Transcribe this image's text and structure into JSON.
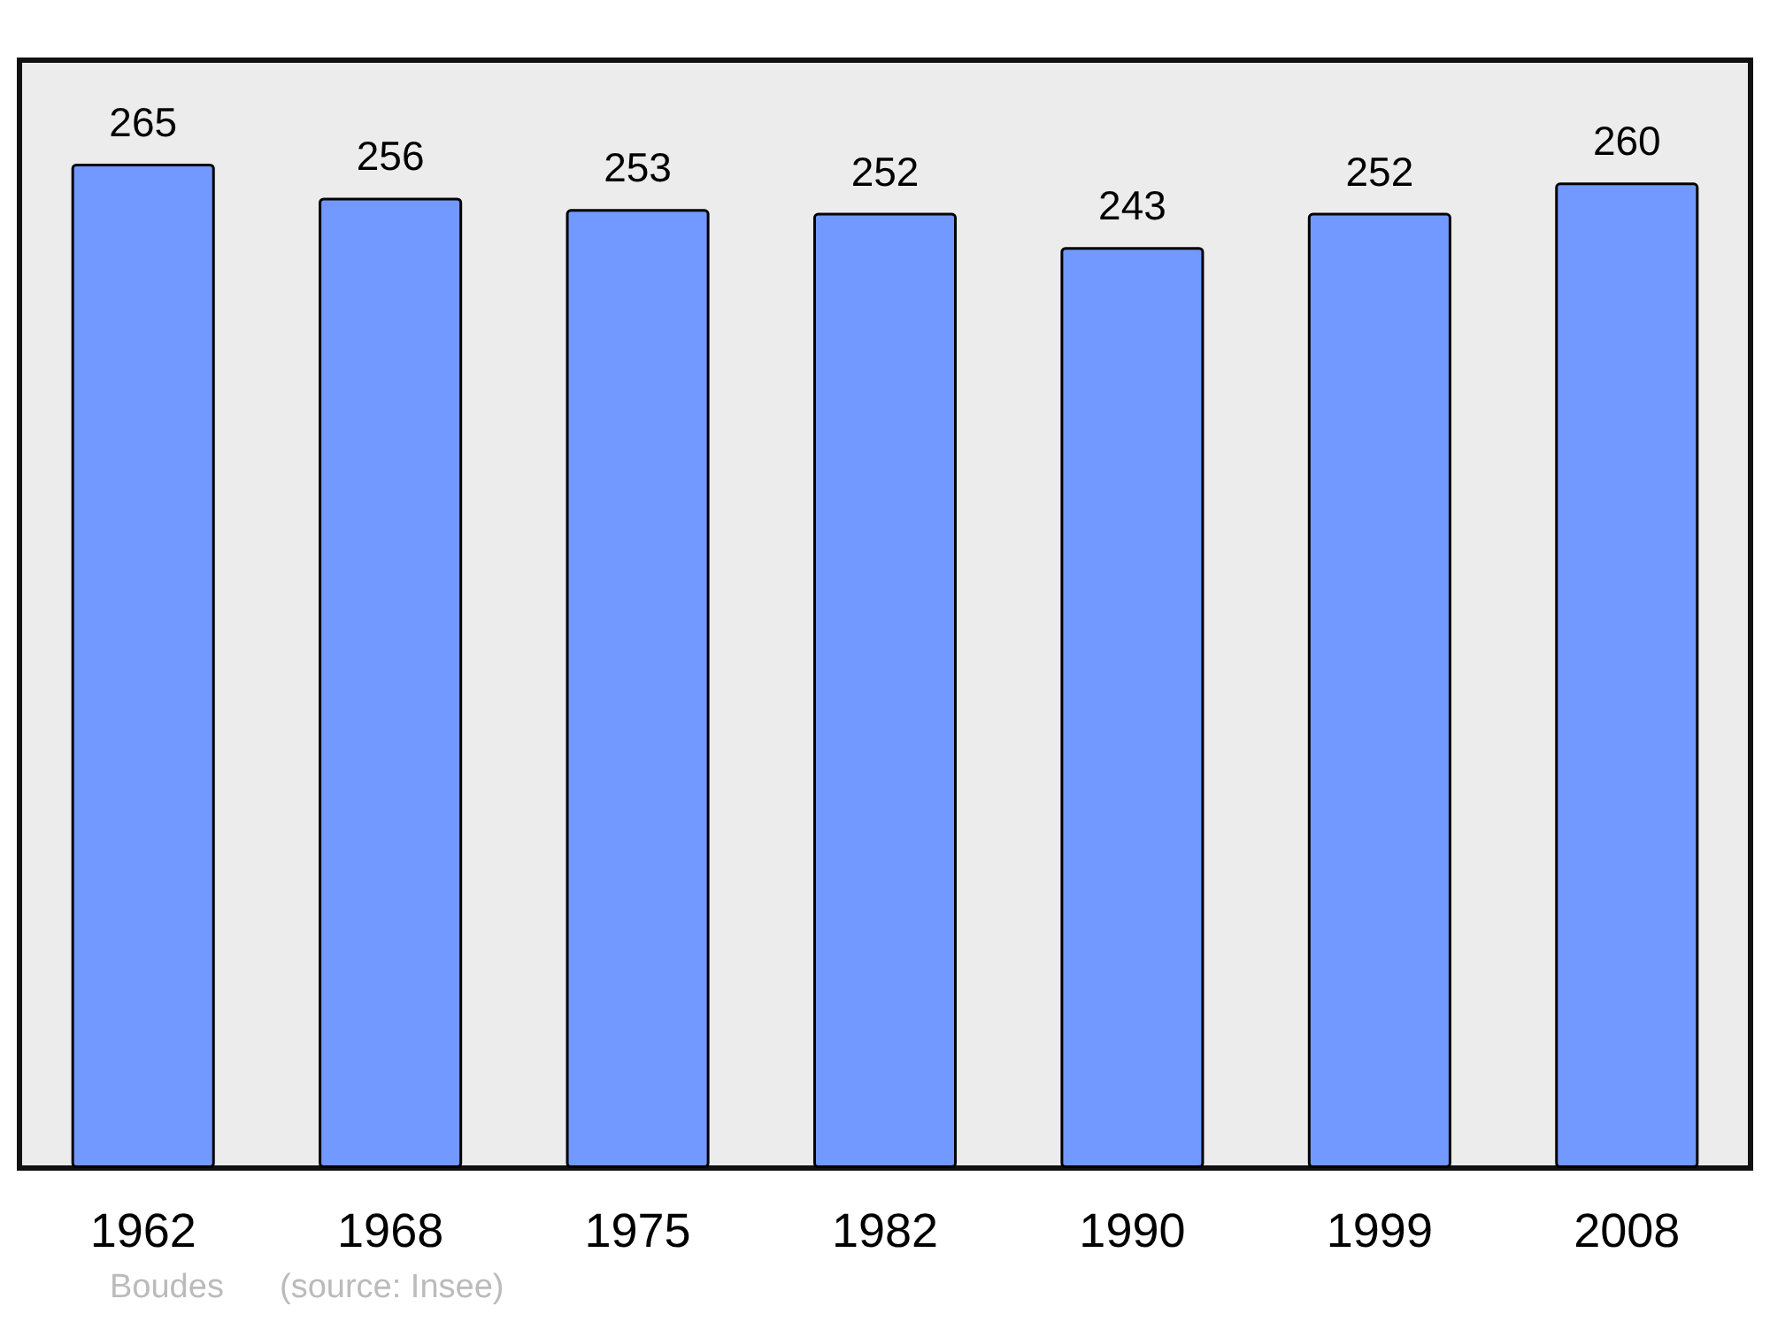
{
  "chart_data": {
    "type": "bar",
    "categories": [
      "1962",
      "1968",
      "1975",
      "1982",
      "1990",
      "1999",
      "2008"
    ],
    "values": [
      265,
      256,
      253,
      252,
      243,
      252,
      260
    ],
    "color": "#7299ff",
    "data_labels": true,
    "annotations": [
      "Boudes",
      "(source: Insee)"
    ]
  }
}
